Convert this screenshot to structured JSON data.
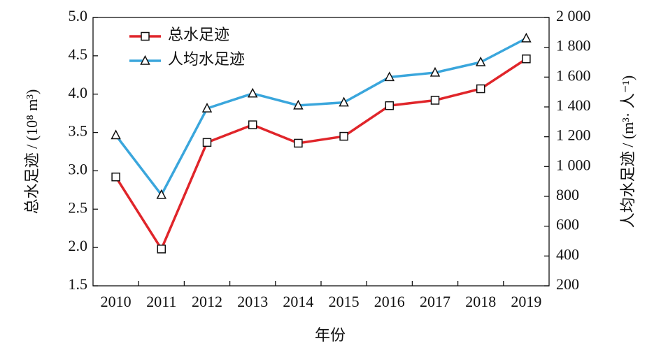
{
  "chart_data": {
    "type": "line",
    "xlabel": "年份",
    "ylabel": "总水足迹 / (10⁸ m³)",
    "y2label": "人均水足迹 / (m³· 人⁻¹)",
    "categories": [
      "2010",
      "2011",
      "2012",
      "2013",
      "2014",
      "2015",
      "2016",
      "2017",
      "2018",
      "2019"
    ],
    "series": [
      {
        "name": "总水足迹",
        "color": "#e0252a",
        "marker": "square",
        "values": [
          2.92,
          1.98,
          3.37,
          3.6,
          3.36,
          3.45,
          3.85,
          3.92,
          4.07,
          4.46
        ]
      },
      {
        "name": "人均水足迹",
        "color": "#3aa6dc",
        "marker": "triangle",
        "axis": "y2",
        "values": [
          1210,
          810,
          1390,
          1490,
          1410,
          1430,
          1600,
          1630,
          1700,
          1860
        ]
      }
    ],
    "ylim": [
      1.5,
      5.0
    ],
    "yticks": [
      1.5,
      {
        "value": 2,
        "label": "2.0"
      },
      2.5,
      {
        "value": 3,
        "label": "3.0"
      },
      3.5,
      {
        "value": 4,
        "label": "4.0"
      },
      4.5,
      {
        "value": 5,
        "label": "5.0"
      }
    ],
    "y2lim": [
      200,
      2000
    ],
    "y2ticks": [
      200,
      400,
      600,
      800,
      {
        "value": 1000,
        "label": "1 000"
      },
      {
        "value": 1200,
        "label": "1 200"
      },
      {
        "value": 1400,
        "label": "1 400"
      },
      {
        "value": 1600,
        "label": "1 600"
      },
      {
        "value": 1800,
        "label": "1 800"
      },
      {
        "value": 2000,
        "label": "2 000"
      }
    ],
    "legend": "upper left"
  }
}
